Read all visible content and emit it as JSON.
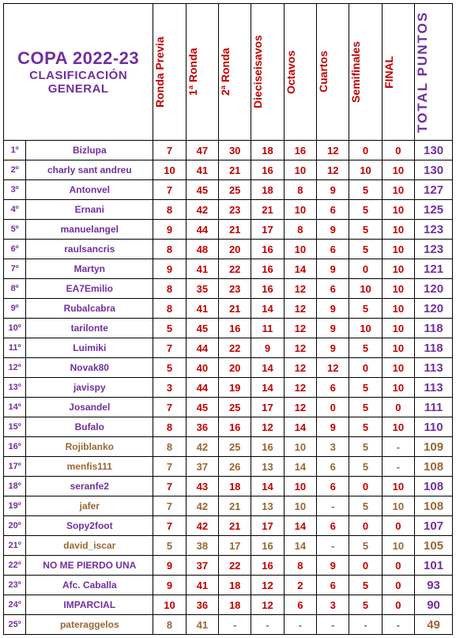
{
  "title_main": "COPA 2022-23",
  "title_sub1": "CLASIFICACIÓN",
  "title_sub2": "GENERAL",
  "round_headers": [
    "Ronda Previa",
    "1ª Ronda",
    "2ª Ronda",
    "Dieciseisavos",
    "Octavos",
    "Cuartos",
    "Semifinales",
    "FINAL"
  ],
  "total_header": "TOTAL  PUNTOS",
  "rows": [
    {
      "rank": "1º",
      "name": "Bizlupa",
      "vals": [
        "7",
        "47",
        "30",
        "18",
        "16",
        "12",
        "0",
        "0"
      ],
      "total": "130",
      "style": "normal"
    },
    {
      "rank": "2º",
      "name": "charly sant andreu",
      "vals": [
        "10",
        "41",
        "21",
        "16",
        "10",
        "12",
        "10",
        "10"
      ],
      "total": "130",
      "style": "normal"
    },
    {
      "rank": "3º",
      "name": "Antonvel",
      "vals": [
        "7",
        "45",
        "25",
        "18",
        "8",
        "9",
        "5",
        "10"
      ],
      "total": "127",
      "style": "normal"
    },
    {
      "rank": "4º",
      "name": "Ernani",
      "vals": [
        "8",
        "42",
        "23",
        "21",
        "10",
        "6",
        "5",
        "10"
      ],
      "total": "125",
      "style": "normal"
    },
    {
      "rank": "5º",
      "name": "manuelangel",
      "vals": [
        "9",
        "44",
        "21",
        "17",
        "8",
        "9",
        "5",
        "10"
      ],
      "total": "123",
      "style": "normal"
    },
    {
      "rank": "6º",
      "name": "raulsancris",
      "vals": [
        "8",
        "48",
        "20",
        "16",
        "10",
        "6",
        "5",
        "10"
      ],
      "total": "123",
      "style": "normal"
    },
    {
      "rank": "7º",
      "name": "Martyn",
      "vals": [
        "9",
        "41",
        "22",
        "16",
        "14",
        "9",
        "0",
        "10"
      ],
      "total": "121",
      "style": "normal"
    },
    {
      "rank": "8º",
      "name": "EA7Emilio",
      "vals": [
        "8",
        "35",
        "23",
        "16",
        "12",
        "6",
        "10",
        "10"
      ],
      "total": "120",
      "style": "normal"
    },
    {
      "rank": "9º",
      "name": "Rubalcabra",
      "vals": [
        "8",
        "41",
        "21",
        "14",
        "12",
        "9",
        "5",
        "10"
      ],
      "total": "120",
      "style": "normal"
    },
    {
      "rank": "10º",
      "name": "tarilonte",
      "vals": [
        "5",
        "45",
        "16",
        "11",
        "12",
        "9",
        "10",
        "10"
      ],
      "total": "118",
      "style": "normal"
    },
    {
      "rank": "11º",
      "name": "Luimiki",
      "vals": [
        "7",
        "44",
        "22",
        "9",
        "12",
        "9",
        "5",
        "10"
      ],
      "total": "118",
      "style": "normal"
    },
    {
      "rank": "12º",
      "name": "Novak80",
      "vals": [
        "5",
        "40",
        "20",
        "14",
        "12",
        "12",
        "0",
        "10"
      ],
      "total": "113",
      "style": "normal"
    },
    {
      "rank": "13º",
      "name": "javispy",
      "vals": [
        "3",
        "44",
        "19",
        "14",
        "12",
        "6",
        "5",
        "10"
      ],
      "total": "113",
      "style": "normal"
    },
    {
      "rank": "14º",
      "name": "Josandel",
      "vals": [
        "7",
        "45",
        "25",
        "17",
        "12",
        "0",
        "5",
        "0"
      ],
      "total": "111",
      "style": "normal"
    },
    {
      "rank": "15º",
      "name": "Bufalo",
      "vals": [
        "8",
        "36",
        "16",
        "12",
        "14",
        "9",
        "5",
        "10"
      ],
      "total": "110",
      "style": "normal"
    },
    {
      "rank": "16º",
      "name": "Rojiblanko",
      "vals": [
        "8",
        "42",
        "25",
        "16",
        "10",
        "3",
        "5",
        "-"
      ],
      "total": "109",
      "style": "brown"
    },
    {
      "rank": "17º",
      "name": "menfis111",
      "vals": [
        "7",
        "37",
        "26",
        "13",
        "14",
        "6",
        "5",
        "-"
      ],
      "total": "108",
      "style": "brown"
    },
    {
      "rank": "18º",
      "name": "seranfe2",
      "vals": [
        "7",
        "43",
        "18",
        "14",
        "10",
        "6",
        "0",
        "10"
      ],
      "total": "108",
      "style": "normal"
    },
    {
      "rank": "19º",
      "name": "jafer",
      "vals": [
        "7",
        "42",
        "21",
        "13",
        "10",
        "-",
        "5",
        "10"
      ],
      "total": "108",
      "style": "brown"
    },
    {
      "rank": "20º",
      "name": "Sopy2foot",
      "vals": [
        "7",
        "42",
        "21",
        "17",
        "14",
        "6",
        "0",
        "0"
      ],
      "total": "107",
      "style": "normal"
    },
    {
      "rank": "21º",
      "name": "david_iscar",
      "vals": [
        "5",
        "38",
        "17",
        "16",
        "14",
        "-",
        "5",
        "10"
      ],
      "total": "105",
      "style": "brown"
    },
    {
      "rank": "22º",
      "name": "NO ME PIERDO UNA",
      "vals": [
        "9",
        "37",
        "22",
        "16",
        "8",
        "9",
        "0",
        "0"
      ],
      "total": "101",
      "style": "normal"
    },
    {
      "rank": "23º",
      "name": "Afc. Caballa",
      "vals": [
        "9",
        "41",
        "18",
        "12",
        "2",
        "6",
        "5",
        "0"
      ],
      "total": "93",
      "style": "normal"
    },
    {
      "rank": "24º",
      "name": "IMPARCIAL",
      "vals": [
        "10",
        "36",
        "18",
        "12",
        "6",
        "3",
        "5",
        "0"
      ],
      "total": "90",
      "style": "normal"
    },
    {
      "rank": "25º",
      "name": "pateraggelos",
      "vals": [
        "8",
        "41",
        "-",
        "-",
        "-",
        "-",
        "-",
        "-"
      ],
      "total": "49",
      "style": "brown"
    }
  ]
}
